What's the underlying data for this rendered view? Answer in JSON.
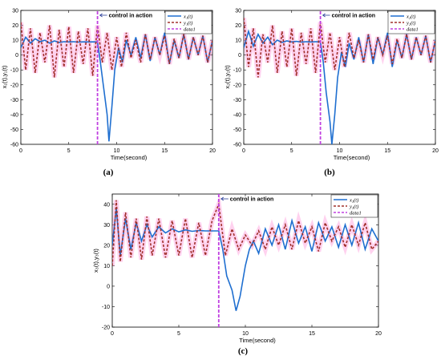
{
  "panels": [
    {
      "label": "(a)"
    },
    {
      "label": "(b)"
    },
    {
      "label": "(c)"
    }
  ],
  "colors": {
    "x": "#1f6fd0",
    "y": "#a0302a",
    "data1": "#c040e0",
    "band": "#ff7fd0",
    "annotation_arrow": "#2a3e9a"
  },
  "chart_data": [
    {
      "type": "line",
      "panel": "(a)",
      "xlabel": "Time(second)",
      "ylabel": "x₁(t),y₁(t)",
      "xlim": [
        0,
        20
      ],
      "ylim": [
        -60,
        30
      ],
      "xticks": [
        "0",
        "5",
        "10",
        "15",
        "20"
      ],
      "yticks": [
        "30",
        "20",
        "10",
        "0",
        "-10",
        "-20",
        "-30",
        "-40",
        "-50",
        "-60"
      ],
      "legend_position": "top-right",
      "annotation": "control in action",
      "control_time": 8,
      "series": [
        {
          "name": "x₁(t)",
          "x": [
            0,
            0.5,
            1,
            1.5,
            2,
            2.5,
            3,
            3.5,
            4,
            4.5,
            5,
            5.5,
            6,
            6.5,
            7,
            7.5,
            8,
            8.3,
            8.6,
            9,
            9.2,
            9.5,
            9.8,
            10.2,
            10.6,
            11,
            11.5,
            12,
            12.5,
            13,
            13.5,
            14,
            14.5,
            15,
            15.5,
            16,
            16.5,
            17,
            17.5,
            18,
            18.5,
            19,
            19.5,
            20
          ],
          "y": [
            5,
            12,
            8,
            11,
            9,
            10,
            8,
            9.5,
            8.5,
            9,
            8.8,
            9,
            8.7,
            8.9,
            8.8,
            8.9,
            8.8,
            -5,
            -20,
            -40,
            -58,
            -35,
            -10,
            5,
            -5,
            10,
            0,
            12,
            -2,
            14,
            -4,
            12,
            0,
            15,
            -6,
            10,
            -2,
            14,
            -3,
            12,
            0,
            13,
            -5,
            10
          ]
        },
        {
          "name": "y₁(t)",
          "x": [
            0,
            0.5,
            1,
            1.5,
            2,
            2.5,
            3,
            3.5,
            4,
            4.5,
            5,
            5.5,
            6,
            6.5,
            7,
            7.5,
            8,
            8.5,
            9,
            9.5,
            10,
            10.5,
            11,
            11.5,
            12,
            12.5,
            13,
            13.5,
            14,
            14.5,
            15,
            15.5,
            16,
            16.5,
            17,
            17.5,
            18,
            18.5,
            19,
            19.5,
            20
          ],
          "y": [
            22,
            -10,
            18,
            -12,
            15,
            -5,
            20,
            -15,
            17,
            -8,
            19,
            -12,
            16,
            -6,
            18,
            -14,
            20,
            -5,
            15,
            -10,
            12,
            -8,
            15,
            -2,
            10,
            -5,
            14,
            -3,
            12,
            0,
            13,
            -6,
            11,
            -2,
            14,
            -3,
            12,
            0,
            13,
            -5,
            10
          ]
        },
        {
          "name": "data1",
          "x": [
            8,
            8
          ],
          "y": [
            -60,
            30
          ]
        }
      ]
    },
    {
      "type": "line",
      "panel": "(b)",
      "xlabel": "Time(second)",
      "ylabel": "x₂(t),y₂(t)",
      "xlim": [
        0,
        20
      ],
      "ylim": [
        -60,
        30
      ],
      "xticks": [
        "0",
        "5",
        "10",
        "15",
        "20"
      ],
      "yticks": [
        "30",
        "20",
        "10",
        "0",
        "-10",
        "-20",
        "-30",
        "-40",
        "-50",
        "-60"
      ],
      "legend_position": "top-right",
      "annotation": "control in action",
      "control_time": 8,
      "series": [
        {
          "name": "x₂(t)",
          "x": [
            0,
            0.5,
            1,
            1.5,
            2,
            2.5,
            3,
            3.5,
            4,
            4.5,
            5,
            5.5,
            6,
            6.5,
            7,
            7.5,
            8,
            8.3,
            8.6,
            9,
            9.2,
            9.5,
            9.8,
            10.2,
            10.6,
            11,
            11.5,
            12,
            12.5,
            13,
            13.5,
            14,
            14.5,
            15,
            15.5,
            16,
            16.5,
            17,
            17.5,
            18,
            18.5,
            19,
            19.5,
            20
          ],
          "y": [
            5,
            16,
            6,
            14,
            8,
            12,
            7,
            10,
            8.5,
            9.5,
            8.8,
            9.2,
            8.7,
            9,
            8.8,
            9,
            8.9,
            -5,
            -25,
            -45,
            -60,
            -40,
            -15,
            2,
            -8,
            8,
            -3,
            12,
            -5,
            14,
            -6,
            12,
            0,
            15,
            -8,
            10,
            -2,
            14,
            -3,
            12,
            0,
            13,
            -5,
            10
          ]
        },
        {
          "name": "y₂(t)",
          "x": [
            0,
            0.5,
            1,
            1.5,
            2,
            2.5,
            3,
            3.5,
            4,
            4.5,
            5,
            5.5,
            6,
            6.5,
            7,
            7.5,
            8,
            8.5,
            9,
            9.5,
            10,
            10.5,
            11,
            11.5,
            12,
            12.5,
            13,
            13.5,
            14,
            14.5,
            15,
            15.5,
            16,
            16.5,
            17,
            17.5,
            18,
            18.5,
            19,
            19.5,
            20
          ],
          "y": [
            25,
            -8,
            18,
            -15,
            14,
            -5,
            20,
            -12,
            16,
            -8,
            18,
            -14,
            15,
            -6,
            18,
            -12,
            22,
            -5,
            15,
            -10,
            12,
            -8,
            15,
            -2,
            10,
            -5,
            14,
            -3,
            12,
            0,
            13,
            -6,
            11,
            -2,
            14,
            -3,
            12,
            0,
            13,
            -5,
            10
          ]
        },
        {
          "name": "data1",
          "x": [
            8,
            8
          ],
          "y": [
            -60,
            30
          ]
        }
      ]
    },
    {
      "type": "line",
      "panel": "(c)",
      "xlabel": "Time(second)",
      "ylabel": "x₃(t),y₃(t)",
      "xlim": [
        0,
        20
      ],
      "ylim": [
        -20,
        45
      ],
      "xticks": [
        "0",
        "5",
        "10",
        "15",
        "20"
      ],
      "yticks": [
        "40",
        "30",
        "20",
        "10",
        "0",
        "-10",
        "-20"
      ],
      "legend_position": "top-right",
      "annotation": "control in action",
      "control_time": 8,
      "series": [
        {
          "name": "x₃(t)",
          "x": [
            0,
            0.3,
            0.6,
            1,
            1.4,
            1.8,
            2.2,
            2.6,
            3,
            3.5,
            4,
            4.5,
            5,
            5.5,
            6,
            6.5,
            7,
            7.5,
            8,
            8.3,
            8.6,
            9,
            9.3,
            9.6,
            10,
            10.3,
            10.6,
            11,
            11.5,
            12,
            12.5,
            13,
            13.5,
            14,
            14.5,
            15,
            15.5,
            16,
            16.5,
            17,
            17.5,
            18,
            18.5,
            19,
            19.5,
            20
          ],
          "y": [
            20,
            38,
            15,
            33,
            18,
            31,
            22,
            30,
            24,
            29,
            26,
            28,
            26.5,
            27.5,
            26.8,
            27.2,
            27,
            27,
            27,
            18,
            5,
            -2,
            -12,
            -5,
            10,
            18,
            22,
            16,
            28,
            20,
            30,
            18,
            32,
            21,
            29,
            17,
            31,
            22,
            29,
            19,
            30,
            20,
            31,
            18,
            28,
            22
          ]
        },
        {
          "name": "y₃(t)",
          "x": [
            0,
            0.3,
            0.6,
            1,
            1.4,
            1.8,
            2.2,
            2.6,
            3,
            3.5,
            4,
            4.5,
            5,
            5.5,
            6,
            6.5,
            7,
            7.5,
            8,
            8.5,
            9,
            9.5,
            10,
            10.5,
            11,
            11.5,
            12,
            12.5,
            13,
            13.5,
            14,
            14.5,
            15,
            15.5,
            16,
            16.5,
            17,
            17.5,
            18,
            18.5,
            19,
            19.5,
            20
          ],
          "y": [
            10,
            42,
            12,
            36,
            14,
            33,
            13,
            34,
            15,
            33,
            14,
            32,
            15,
            33,
            14,
            31,
            15,
            32,
            40,
            15,
            28,
            18,
            25,
            20,
            27,
            18,
            29,
            20,
            30,
            18,
            32,
            21,
            29,
            17,
            31,
            22,
            29,
            19,
            30,
            20,
            31,
            18,
            22
          ]
        },
        {
          "name": "data1",
          "x": [
            8,
            8
          ],
          "y": [
            -20,
            45
          ]
        }
      ]
    }
  ]
}
